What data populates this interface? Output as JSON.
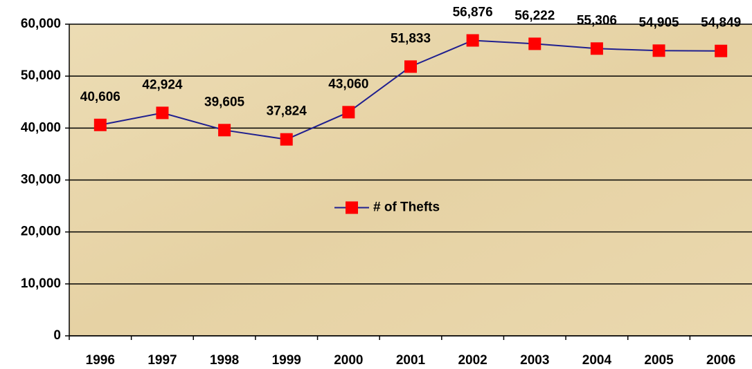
{
  "chart_data": {
    "type": "line",
    "categories": [
      "1996",
      "1997",
      "1998",
      "1999",
      "2000",
      "2001",
      "2002",
      "2003",
      "2004",
      "2005",
      "2006"
    ],
    "series": [
      {
        "name": "# of Thefts",
        "color": "#1f1f8f",
        "marker_color": "#ff0000",
        "values": [
          40606,
          42924,
          39605,
          37824,
          43060,
          51833,
          56876,
          56222,
          55306,
          54905,
          54849
        ],
        "value_labels": [
          "40,606",
          "42,924",
          "39,605",
          "37,824",
          "43,060",
          "51,833",
          "56,876",
          "56,222",
          "55,306",
          "54,905",
          "54,849"
        ]
      }
    ],
    "ylim": [
      0,
      60000
    ],
    "yticks": [
      0,
      {
        "value": 10000,
        "label": "10,000"
      },
      {
        "value": 20000,
        "label": "20,000"
      },
      {
        "value": 30000,
        "label": "30,000"
      },
      {
        "value": 40000,
        "label": "40,000"
      },
      {
        "value": 50000,
        "label": "50,000"
      },
      {
        "value": 60000,
        "label": "60,000"
      }
    ],
    "grid": true,
    "legend": "center"
  }
}
